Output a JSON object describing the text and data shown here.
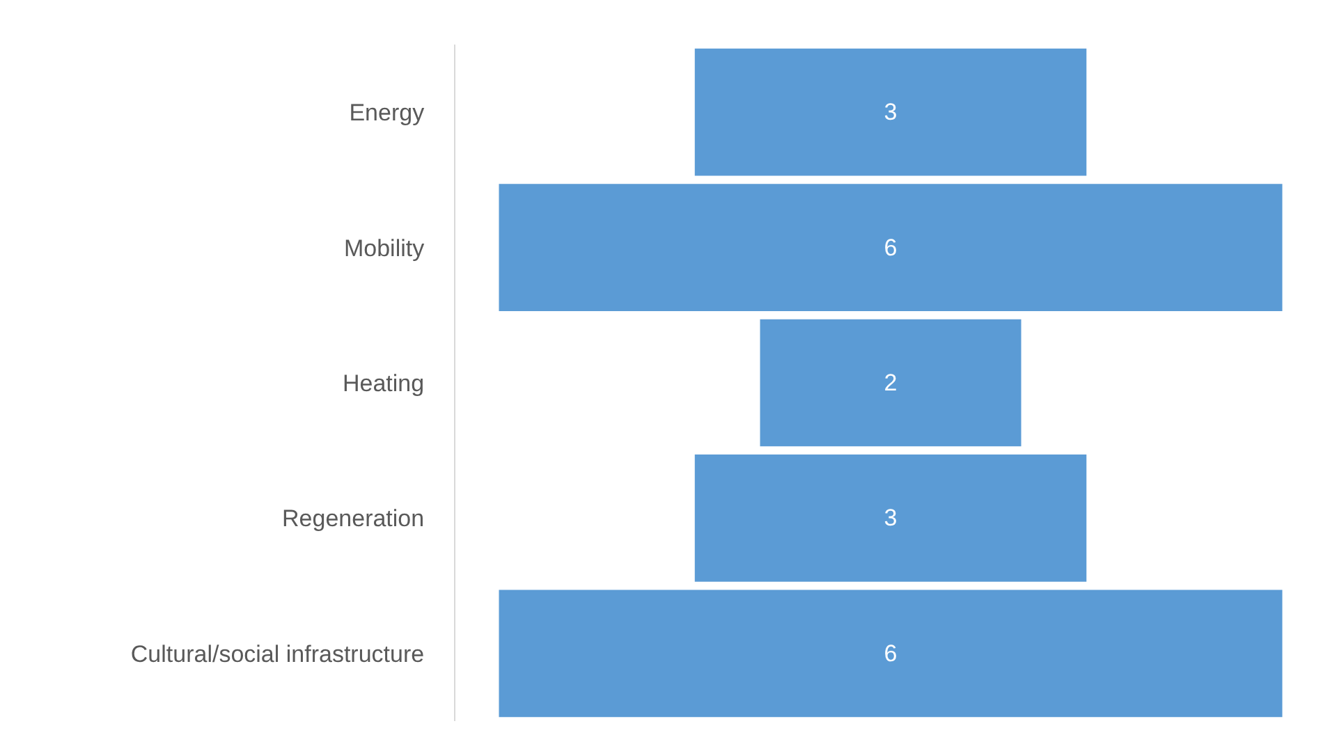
{
  "chart_data": {
    "type": "other",
    "categories": [
      "Energy",
      "Mobility",
      "Heating",
      "Regeneration",
      "Cultural/social infrastructure"
    ],
    "values": [
      3,
      6,
      2,
      3,
      6
    ],
    "color": "#5b9bd5",
    "data_labels": true
  }
}
